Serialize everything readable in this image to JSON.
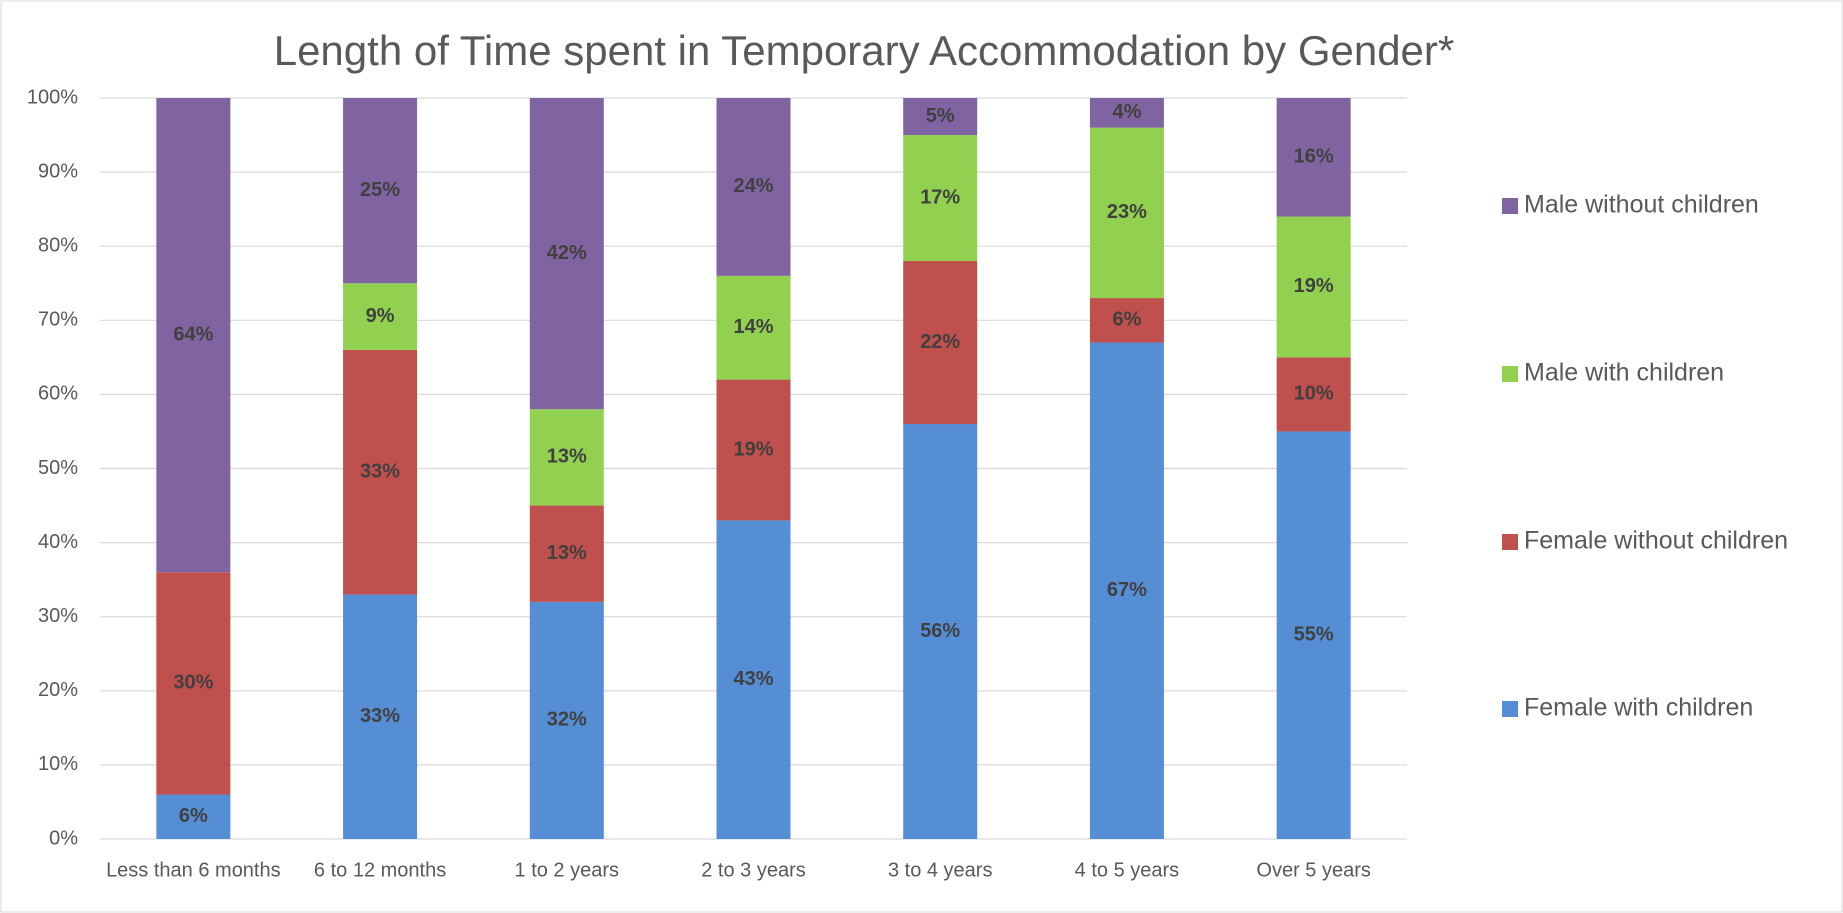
{
  "chart_data": {
    "type": "stacked_bar",
    "title": "Length of Time spent in Temporary Accommodation by Gender*",
    "categories": [
      "Less than 6 months",
      "6 to 12 months",
      "1 to 2 years",
      "2 to 3 years",
      "3 to 4 years",
      "4 to 5 years",
      "Over 5 years"
    ],
    "series": [
      {
        "name": "Female with children",
        "color": "#558ed5",
        "values": [
          6,
          33,
          32,
          43,
          56,
          67,
          55
        ],
        "value_labels": [
          "6%",
          "33%",
          "32%",
          "43%",
          "56%",
          "67%",
          "55%"
        ]
      },
      {
        "name": "Female without children",
        "color": "#c0504d",
        "values": [
          30,
          33,
          13,
          19,
          22,
          6,
          10
        ],
        "value_labels": [
          "30%",
          "33%",
          "13%",
          "19%",
          "22%",
          "6%",
          "10%"
        ]
      },
      {
        "name": "Male with children",
        "color": "#92d050",
        "values": [
          null,
          9,
          13,
          14,
          17,
          23,
          19
        ],
        "value_labels": [
          null,
          "9%",
          "13%",
          "14%",
          "17%",
          "23%",
          "19%"
        ]
      },
      {
        "name": "Male without children",
        "color": "#8064a2",
        "values": [
          64,
          25,
          42,
          24,
          5,
          4,
          16
        ],
        "value_labels": [
          "64%",
          "25%",
          "42%",
          "24%",
          "5%",
          "4%",
          "16%"
        ]
      }
    ],
    "ylim": [
      0,
      100
    ],
    "yticks": [
      {
        "value": 0,
        "label": "0%"
      },
      {
        "value": 10,
        "label": "10%"
      },
      {
        "value": 20,
        "label": "20%"
      },
      {
        "value": 30,
        "label": "30%"
      },
      {
        "value": 40,
        "label": "40%"
      },
      {
        "value": 50,
        "label": "50%"
      },
      {
        "value": 60,
        "label": "60%"
      },
      {
        "value": 70,
        "label": "70%"
      },
      {
        "value": 80,
        "label": "80%"
      },
      {
        "value": 90,
        "label": "90%"
      },
      {
        "value": 100,
        "label": "100%"
      }
    ],
    "grid": true,
    "legend": "right"
  }
}
